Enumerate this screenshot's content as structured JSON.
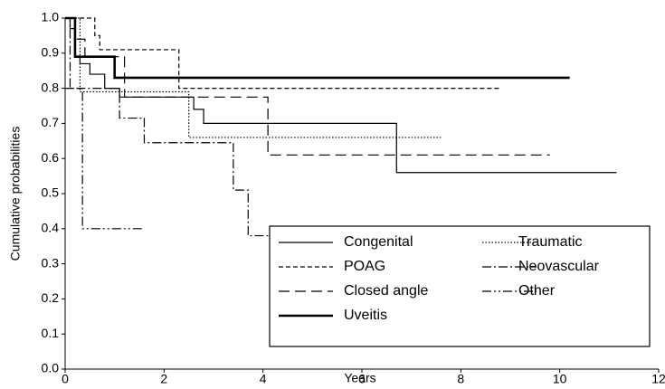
{
  "chart_data": {
    "type": "step",
    "x_label": "Years",
    "y_label": "Cumulative probabilities",
    "xlim": [
      0,
      12
    ],
    "xticks": [
      0,
      2,
      4,
      6,
      8,
      10,
      12
    ],
    "ylim": [
      0,
      1
    ],
    "yticks": [
      {
        "value": 0,
        "label": "0.0"
      },
      0.1,
      0.2,
      0.3,
      0.4,
      0.5,
      0.6,
      0.7,
      0.8,
      0.9,
      {
        "value": 1,
        "label": "1.0"
      }
    ],
    "legend": "lower right",
    "series": [
      {
        "name": "Congenital",
        "color": "#000000",
        "width": 1.2,
        "dash": "none",
        "x": [
          0,
          0.1,
          0.2,
          0.3,
          0.5,
          0.8,
          1.1,
          2.6,
          2.8,
          6.7,
          11.15
        ],
        "values": [
          1.0,
          0.97,
          0.89,
          0.87,
          0.84,
          0.8,
          0.775,
          0.74,
          0.7,
          0.56,
          0.56
        ]
      },
      {
        "name": "POAG",
        "color": "#000000",
        "width": 1.2,
        "dash": "5 3",
        "x": [
          0,
          0.6,
          0.7,
          2.3,
          8.8
        ],
        "values": [
          1.0,
          0.95,
          0.91,
          0.8,
          0.8
        ]
      },
      {
        "name": "Closed angle",
        "color": "#000000",
        "width": 1.2,
        "dash": "12 6",
        "x": [
          0,
          0.2,
          0.4,
          1.2,
          4.1,
          9.8
        ],
        "values": [
          1.0,
          0.94,
          0.89,
          0.775,
          0.61,
          0.61
        ]
      },
      {
        "name": "Uveitis",
        "color": "#000000",
        "width": 2.6,
        "dash": "none",
        "x": [
          0,
          0.2,
          1.0,
          10.2
        ],
        "values": [
          1.0,
          0.89,
          0.83,
          0.83
        ]
      },
      {
        "name": "Traumatic",
        "color": "#000000",
        "width": 1.2,
        "dash": "1.5 2",
        "x": [
          0,
          0.3,
          2.5,
          7.6
        ],
        "values": [
          1.0,
          0.79,
          0.66,
          0.66
        ]
      },
      {
        "name": "Neovascular",
        "color": "#000000",
        "width": 1.2,
        "dash": "10 3 2 3",
        "x": [
          0,
          0.1,
          1.1,
          1.6,
          3.4,
          3.7,
          8.1
        ],
        "values": [
          1.0,
          0.8,
          0.715,
          0.645,
          0.51,
          0.38,
          0.38
        ]
      },
      {
        "name": "Other",
        "color": "#000000",
        "width": 1.2,
        "dash": "10 3 2 3 2 3",
        "x": [
          0,
          0.35,
          1.6
        ],
        "values": [
          0.8,
          0.4,
          0.4
        ]
      }
    ]
  }
}
